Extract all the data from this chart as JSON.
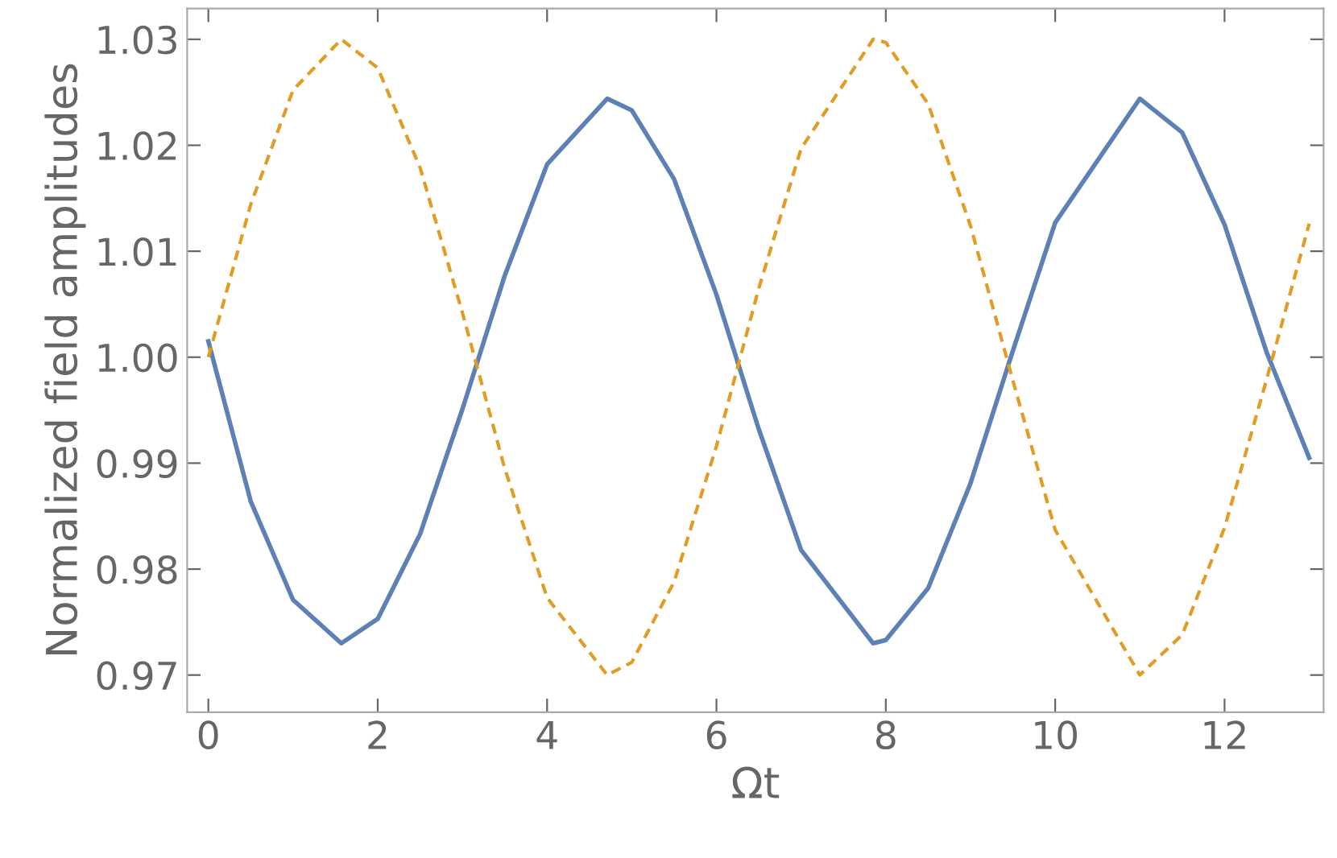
{
  "chart_data": {
    "type": "line",
    "xlabel": "Ωt",
    "ylabel": "Normalized field amplitudes",
    "x": [
      0,
      0.5,
      1,
      1.57,
      2,
      2.5,
      3,
      3.5,
      4,
      4.71,
      5,
      5.5,
      6,
      6.5,
      7,
      7.85,
      8,
      8.5,
      9,
      9.5,
      10,
      11.0,
      11.5,
      12,
      12.5,
      13
    ],
    "series": [
      {
        "color": "#5e81b5",
        "line_style": "solid",
        "values": [
          1.0015,
          0.9864,
          0.9771,
          0.973,
          0.9753,
          0.9833,
          0.9951,
          1.0077,
          1.0182,
          1.0244,
          1.0233,
          1.0168,
          1.0059,
          0.9932,
          0.9818,
          0.973,
          0.9733,
          0.9782,
          0.9881,
          1.0006,
          1.0127,
          1.0244,
          1.0212,
          1.0125,
          1.0004,
          0.9905
        ]
      },
      {
        "color": "#e19c24",
        "line_style": "dashed",
        "values": [
          1.0,
          1.0144,
          1.0252,
          1.03,
          1.0273,
          1.0179,
          1.0042,
          0.9895,
          0.9773,
          0.97,
          0.9712,
          0.9788,
          0.9916,
          1.0065,
          1.0197,
          1.03,
          1.0297,
          1.0239,
          1.0124,
          0.9978,
          0.9837,
          0.97,
          0.9738,
          0.9839,
          0.998,
          1.0126
        ]
      }
    ],
    "xlim": [
      -0.25,
      13.17
    ],
    "ylim": [
      0.9665,
      1.0329
    ],
    "xticks": [
      0,
      2,
      4,
      6,
      8,
      10,
      12
    ],
    "yticks": [
      {
        "value": 0.97,
        "label": "0.97"
      },
      {
        "value": 0.98,
        "label": "0.98"
      },
      {
        "value": 0.99,
        "label": "0.99"
      },
      {
        "value": 1.0,
        "label": "1.00"
      },
      {
        "value": 1.01,
        "label": "1.01"
      },
      {
        "value": 1.02,
        "label": "1.02"
      },
      {
        "value": 1.03,
        "label": "1.03"
      }
    ],
    "grid": false,
    "legend": false
  }
}
